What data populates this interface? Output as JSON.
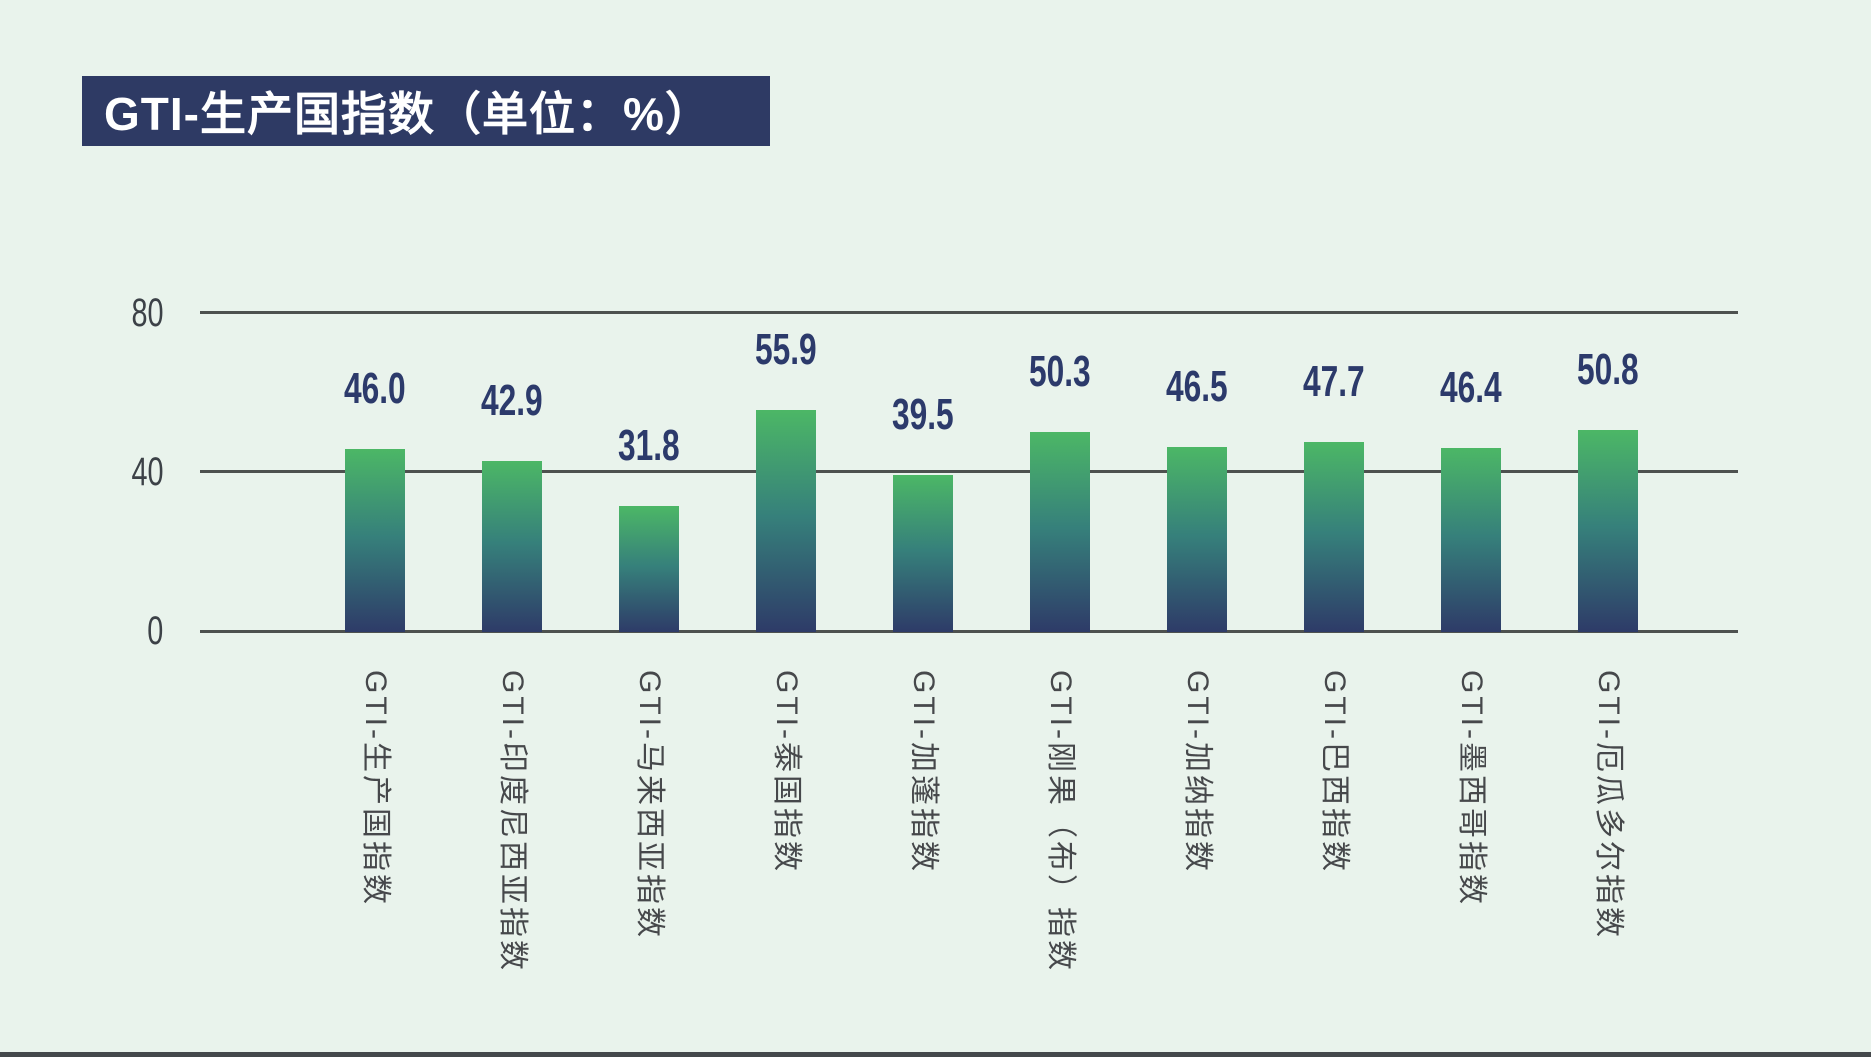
{
  "page": {
    "background": "#e9f3ec",
    "bottom_border_color": "#44484b"
  },
  "title": {
    "text": "GTI-生产国指数（单位：%）",
    "bg_color": "#2e3a64",
    "text_color": "#ffffff"
  },
  "chart_data": {
    "type": "bar",
    "title": "GTI-生产国指数（单位：%）",
    "categories": [
      "GTI-生产国指数",
      "GTI-印度尼西亚指数",
      "GTI-马来西亚指数",
      "GTI-泰国指数",
      "GTI-加蓬指数",
      "GTI-刚果（布）指数",
      "GTI-加纳指数",
      "GTI-巴西指数",
      "GTI-墨西哥指数",
      "GTI-厄瓜多尔指数"
    ],
    "values": [
      46.0,
      42.9,
      31.8,
      55.9,
      39.5,
      50.3,
      46.5,
      47.7,
      46.4,
      50.8
    ],
    "value_labels": [
      "46.0",
      "42.9",
      "31.8",
      "55.9",
      "39.5",
      "50.3",
      "46.5",
      "47.7",
      "46.4",
      "50.8"
    ],
    "xlabel": "",
    "ylabel": "",
    "unit": "%",
    "ylim": [
      0,
      80
    ],
    "yticks": [
      0,
      40,
      80
    ],
    "ytick_labels": [
      "0",
      "40",
      "80"
    ],
    "grid": true,
    "legend": false,
    "bar_gradient": {
      "top": "#4cb766",
      "mid": "#36807b",
      "bottom": "#2e3b68"
    },
    "value_label_color": "#2c3a6b",
    "axis_color": "#4d514f",
    "ytick_color": "#3c4147",
    "xtick_color": "#46484b"
  }
}
